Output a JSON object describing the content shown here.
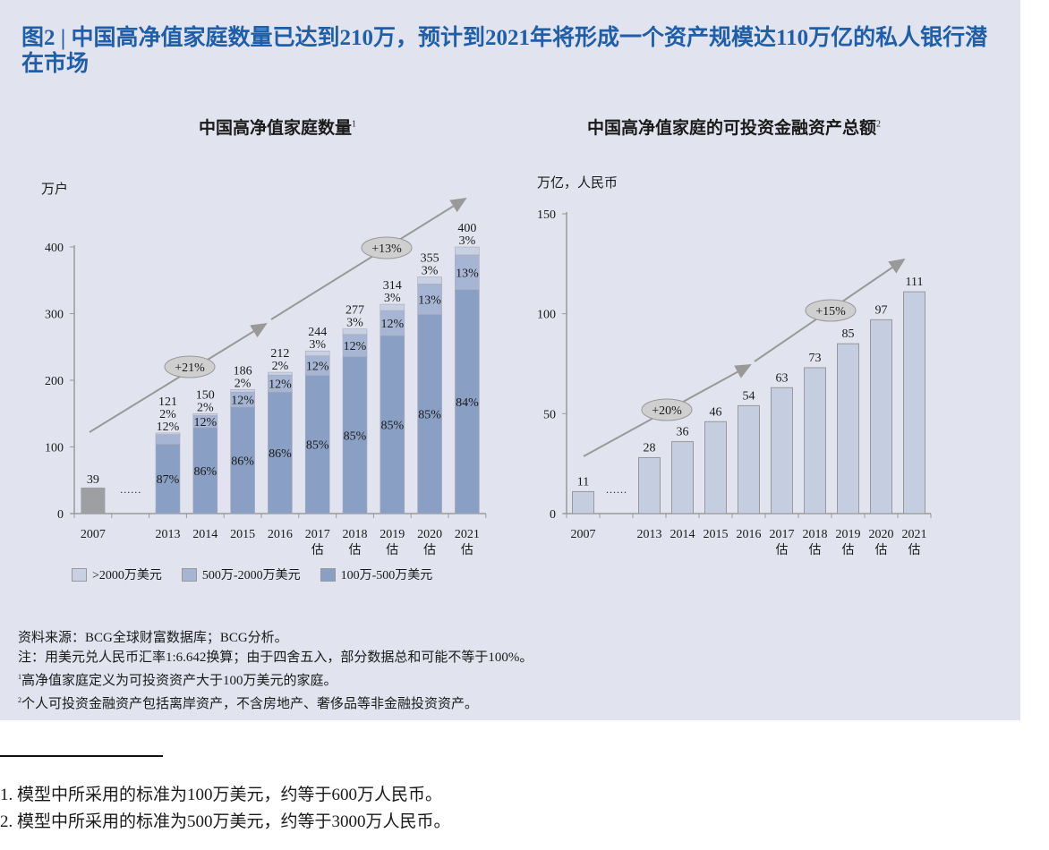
{
  "title": "图2 | 中国高净值家庭数量已达到210万，预计到2021年将形成一个资产规模达110万亿的私人银行潜在市场",
  "colors": {
    "title": "#1f5ea8",
    "panel_bg": "#e1e4ef",
    "seg_top": "#c8d0e3",
    "seg_mid": "#a7b5d4",
    "seg_bottom": "#8a9fc4",
    "bar_2007": "#9d9fa3",
    "bar_right": "#c5cde0"
  },
  "chart_data": [
    {
      "type": "bar",
      "stacked": true,
      "title": "中国高净值家庭数量",
      "title_sup": "1",
      "ylabel": "万户",
      "ylim": [
        0,
        400
      ],
      "yticks": [
        0,
        100,
        200,
        300,
        400
      ],
      "categories": [
        "2007",
        "2013",
        "2014",
        "2015",
        "2016",
        "2017",
        "2018",
        "2019",
        "2020",
        "2021"
      ],
      "estimate_flags": [
        false,
        false,
        false,
        false,
        false,
        true,
        true,
        true,
        true,
        true
      ],
      "estimate_label": "估",
      "gap_marker": "……",
      "totals": [
        39,
        121,
        150,
        186,
        212,
        244,
        277,
        314,
        355,
        400
      ],
      "series": [
        {
          "name": "100万-500万美元",
          "shares_pct": [
            null,
            87,
            86,
            86,
            86,
            85,
            85,
            85,
            85,
            84
          ]
        },
        {
          "name": "500万-2000万美元",
          "shares_pct": [
            null,
            12,
            12,
            12,
            12,
            12,
            12,
            12,
            13,
            13
          ]
        },
        {
          "name": ">2000万美元",
          "shares_pct": [
            null,
            2,
            2,
            2,
            2,
            3,
            3,
            3,
            3,
            3
          ]
        }
      ],
      "cagr_annotations": [
        "+21%",
        "+13%"
      ],
      "legend": [
        ">2000万美元",
        "500万-2000万美元",
        "100万-500万美元"
      ],
      "legend_position": "bottom"
    },
    {
      "type": "bar",
      "title": "中国高净值家庭的可投资金融资产总额",
      "title_sup": "2",
      "ylabel": "万亿，人民币",
      "ylim": [
        0,
        150
      ],
      "yticks": [
        0,
        50,
        100,
        150
      ],
      "categories": [
        "2007",
        "2013",
        "2014",
        "2015",
        "2016",
        "2017",
        "2018",
        "2019",
        "2020",
        "2021"
      ],
      "estimate_flags": [
        false,
        false,
        false,
        false,
        false,
        true,
        true,
        true,
        true,
        true
      ],
      "estimate_label": "估",
      "gap_marker": "……",
      "values": [
        11,
        28,
        36,
        46,
        54,
        63,
        73,
        85,
        97,
        111
      ],
      "cagr_annotations": [
        "+20%",
        "+15%"
      ]
    }
  ],
  "notes": {
    "source": "资料来源：BCG全球财富数据库；BCG分析。",
    "note": "注：用美元兑人民币汇率1:6.642换算；由于四舍五入，部分数据总和可能不等于100%。",
    "fn1_mark": "1",
    "fn1": "高净值家庭定义为可投资资产大于100万美元的家庭。",
    "fn2_mark": "2",
    "fn2": "个人可投资金融资产包括离岸资产，不含房地产、奢侈品等非金融投资资产。"
  },
  "footnotes": [
    "1. 模型中所采用的标准为100万美元，约等于600万人民币。",
    "2. 模型中所采用的标准为500万美元，约等于3000万人民币。"
  ]
}
